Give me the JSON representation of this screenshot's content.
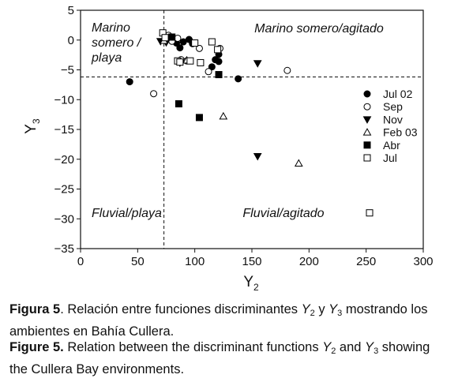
{
  "chart_data": {
    "type": "scatter",
    "xlabel": "Y",
    "xlabel_sub": "2",
    "ylabel": "Y",
    "ylabel_sub": "3",
    "xlim": [
      0,
      300
    ],
    "ylim": [
      -35,
      5
    ],
    "xticks": [
      0,
      50,
      100,
      150,
      200,
      250,
      300
    ],
    "yticks": [
      5,
      0,
      -5,
      -10,
      -15,
      -20,
      -25,
      -30,
      -35
    ],
    "divider_x": 73,
    "divider_y": -6.2,
    "legend_position": "right",
    "region_labels": [
      {
        "id": "marino-somero-playa",
        "lines": [
          "Marino",
          "somero /",
          "playa"
        ]
      },
      {
        "id": "marino-somero-agitado",
        "lines": [
          "Marino somero/agitado"
        ]
      },
      {
        "id": "fluvial-playa",
        "lines": [
          "Fluvial/playa"
        ]
      },
      {
        "id": "fluvial-agitado",
        "lines": [
          "Fluvial/agitado"
        ]
      }
    ],
    "series": [
      {
        "name": "Jul 02",
        "marker": "circle-filled",
        "points": [
          [
            43,
            -7
          ],
          [
            84,
            -0.5
          ],
          [
            87,
            -1.3
          ],
          [
            90,
            -0.3
          ],
          [
            95,
            0.1
          ],
          [
            98,
            -0.6
          ],
          [
            115,
            -4.5
          ],
          [
            118,
            -3.3
          ],
          [
            121,
            -3.6
          ],
          [
            121,
            -2.4
          ],
          [
            138,
            -6.5
          ]
        ]
      },
      {
        "name": "Sep",
        "marker": "circle-open",
        "points": [
          [
            64,
            -9
          ],
          [
            77,
            0.8
          ],
          [
            80,
            -0.2
          ],
          [
            85,
            0.3
          ],
          [
            88,
            -3.3
          ],
          [
            93,
            -3.5
          ],
          [
            100,
            -0.5
          ],
          [
            104,
            -1.4
          ],
          [
            112,
            -5.3
          ],
          [
            122,
            -1.4
          ],
          [
            181,
            -5.1
          ]
        ]
      },
      {
        "name": "Nov",
        "marker": "triangle-down-filled",
        "points": [
          [
            70,
            -0.2
          ],
          [
            75,
            -0.4
          ],
          [
            87,
            -3.8
          ],
          [
            155,
            -3.9
          ],
          [
            155,
            -19.5
          ]
        ]
      },
      {
        "name": "Feb 03",
        "marker": "triangle-up-open",
        "points": [
          [
            73,
            -0.1
          ],
          [
            93,
            -3.4
          ],
          [
            125,
            -12.8
          ],
          [
            191,
            -20.7
          ]
        ]
      },
      {
        "name": "Abr",
        "marker": "square-filled",
        "points": [
          [
            80,
            0.5
          ],
          [
            86,
            -10.7
          ],
          [
            104,
            -13
          ],
          [
            121,
            -5.8
          ]
        ]
      },
      {
        "name": "Jul",
        "marker": "square-open",
        "points": [
          [
            72,
            1.2
          ],
          [
            74,
            0.4
          ],
          [
            85,
            -3.5
          ],
          [
            87,
            -3.7
          ],
          [
            96,
            -3.5
          ],
          [
            100,
            -0.5
          ],
          [
            105,
            -3.8
          ],
          [
            115,
            -0.3
          ],
          [
            120,
            -1.6
          ],
          [
            253,
            -29
          ]
        ]
      }
    ]
  },
  "caption": {
    "es": {
      "label": "Figura 5",
      "p1": ". Relación entre funciones discriminantes ",
      "v1": "Y",
      "s1": "2",
      "p2": " y ",
      "v2": "Y",
      "s2": "3",
      "p3": " mostrando los ambientes en Bahía Cullera."
    },
    "en": {
      "label": "Figure 5.",
      "p1": " Relation between the discriminant functions ",
      "v1": "Y",
      "s1": "2",
      "p2": " and ",
      "v2": "Y",
      "s2": "3",
      "p3": " showing the Cullera Bay environments."
    }
  }
}
